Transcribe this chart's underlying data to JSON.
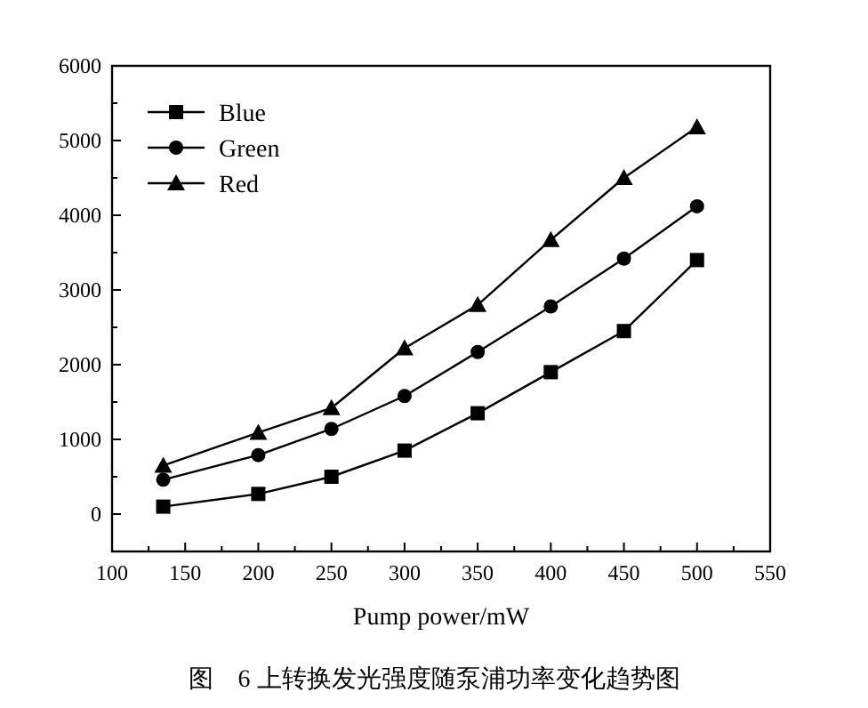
{
  "chart_data": {
    "type": "line",
    "xlabel": "Pump power/mW",
    "annotations": [
      "图　6 上转换发光强度随泵浦功率变化趋势图"
    ],
    "x": [
      135,
      200,
      250,
      300,
      350,
      400,
      450,
      500
    ],
    "xlim": [
      100,
      550
    ],
    "xticks": [
      100,
      150,
      200,
      250,
      300,
      350,
      400,
      450,
      500,
      550
    ],
    "ylim": [
      -500,
      6000
    ],
    "yticks": [
      {
        "value": -500,
        "label": null
      },
      0,
      {
        "value": 500,
        "label": null
      },
      1000,
      {
        "value": 1500,
        "label": null
      },
      2000,
      {
        "value": 2500,
        "label": null
      },
      3000,
      {
        "value": 3500,
        "label": null
      },
      4000,
      {
        "value": 4500,
        "label": null
      },
      5000,
      {
        "value": 5500,
        "label": null
      },
      6000
    ],
    "legend": "top left",
    "line_style": "solid",
    "grid": false,
    "series": [
      {
        "name": "Blue",
        "color": "#000000",
        "marker": "square",
        "values": [
          100,
          270,
          500,
          850,
          1350,
          1900,
          2450,
          3400
        ]
      },
      {
        "name": "Green",
        "color": "#000000",
        "marker": "circle",
        "values": [
          460,
          790,
          1140,
          1580,
          2170,
          2780,
          3420,
          4120
        ]
      },
      {
        "name": "Red",
        "color": "#000000",
        "marker": "triangle",
        "values": [
          650,
          1090,
          1420,
          2220,
          2800,
          3670,
          4500,
          5180
        ]
      }
    ]
  }
}
